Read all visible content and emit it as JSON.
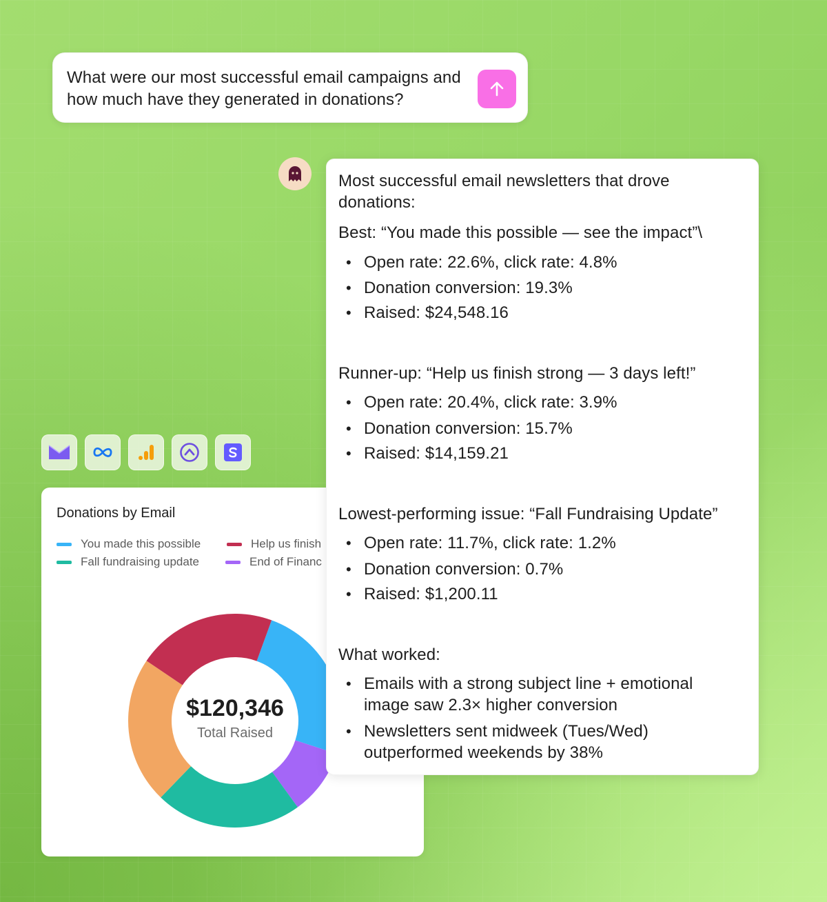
{
  "query": {
    "text": "What were our most successful email campaigns and how much have they generated in donations?",
    "send_icon": "arrow-up-icon"
  },
  "assistant": {
    "avatar_icon": "ghost-icon"
  },
  "integrations": [
    {
      "name": "email-icon",
      "color": "#7b5cf0"
    },
    {
      "name": "meta-icon",
      "color": "#1877f2"
    },
    {
      "name": "analytics-bar-icon",
      "color": "#f59e0b"
    },
    {
      "name": "arrow-circle-icon",
      "color": "#6d4fe0"
    },
    {
      "name": "stripe-s-icon",
      "color": "#635bff"
    }
  ],
  "chart_card": {
    "title": "Donations by Email",
    "total_value": "$120,346",
    "total_label": "Total Raised"
  },
  "chart_data": {
    "type": "pie",
    "title": "Donations by Email",
    "legend": [
      {
        "name": "You made this possible",
        "color": "#38b4f7"
      },
      {
        "name": "Help us finish",
        "color": "#c22f51"
      },
      {
        "name": "Fall fundraising update",
        "color": "#1fbba1"
      },
      {
        "name": "End of Financ",
        "color": "#a466f7"
      }
    ],
    "slices": [
      {
        "color": "#38b4f7",
        "value": 22
      },
      {
        "color": "#a466f7",
        "value": 9
      },
      {
        "color": "#1fbba1",
        "value": 20
      },
      {
        "color": "#f2a662",
        "value": 20
      },
      {
        "color": "#c22f51",
        "value": 19
      }
    ],
    "center_value": "$120,346",
    "center_label": "Total Raised"
  },
  "response": {
    "intro": "Most successful email newsletters that drove donations:",
    "intro_line1": "Most successful email newsletters that drove",
    "intro_line2": "donations:",
    "best": {
      "heading": "Best: “You made this possible — see the impact”\\",
      "bullets": [
        "Open rate: 22.6%, click rate: 4.8%",
        "Donation conversion: 19.3%",
        "Raised: $24,548.16"
      ]
    },
    "runner_up": {
      "heading": "Runner-up: “Help us finish strong — 3 days left!”",
      "bullets": [
        "Open rate: 20.4%, click rate: 3.9%",
        "Donation conversion: 15.7%",
        "Raised: $14,159.21"
      ]
    },
    "lowest": {
      "heading": "Lowest-performing issue: “Fall Fundraising Update”",
      "bullets": [
        "Open rate: 11.7%, click rate: 1.2%",
        "Donation conversion: 0.7%",
        "Raised: $1,200.11"
      ]
    },
    "worked": {
      "heading": "What worked:",
      "bullets": [
        "Emails with a strong subject line + emotional image saw 2.3× higher conversion",
        "Newsletters sent midweek (Tues/Wed) outperformed weekends by 38%"
      ],
      "bullet1_line1": "Emails with a strong subject line + emotional",
      "bullet1_line2": "image saw 2.3× higher conversion",
      "bullet2_line1": "Newsletters sent midweek (Tues/Wed)",
      "bullet2_line2": "outperformed weekends by 38%"
    }
  }
}
